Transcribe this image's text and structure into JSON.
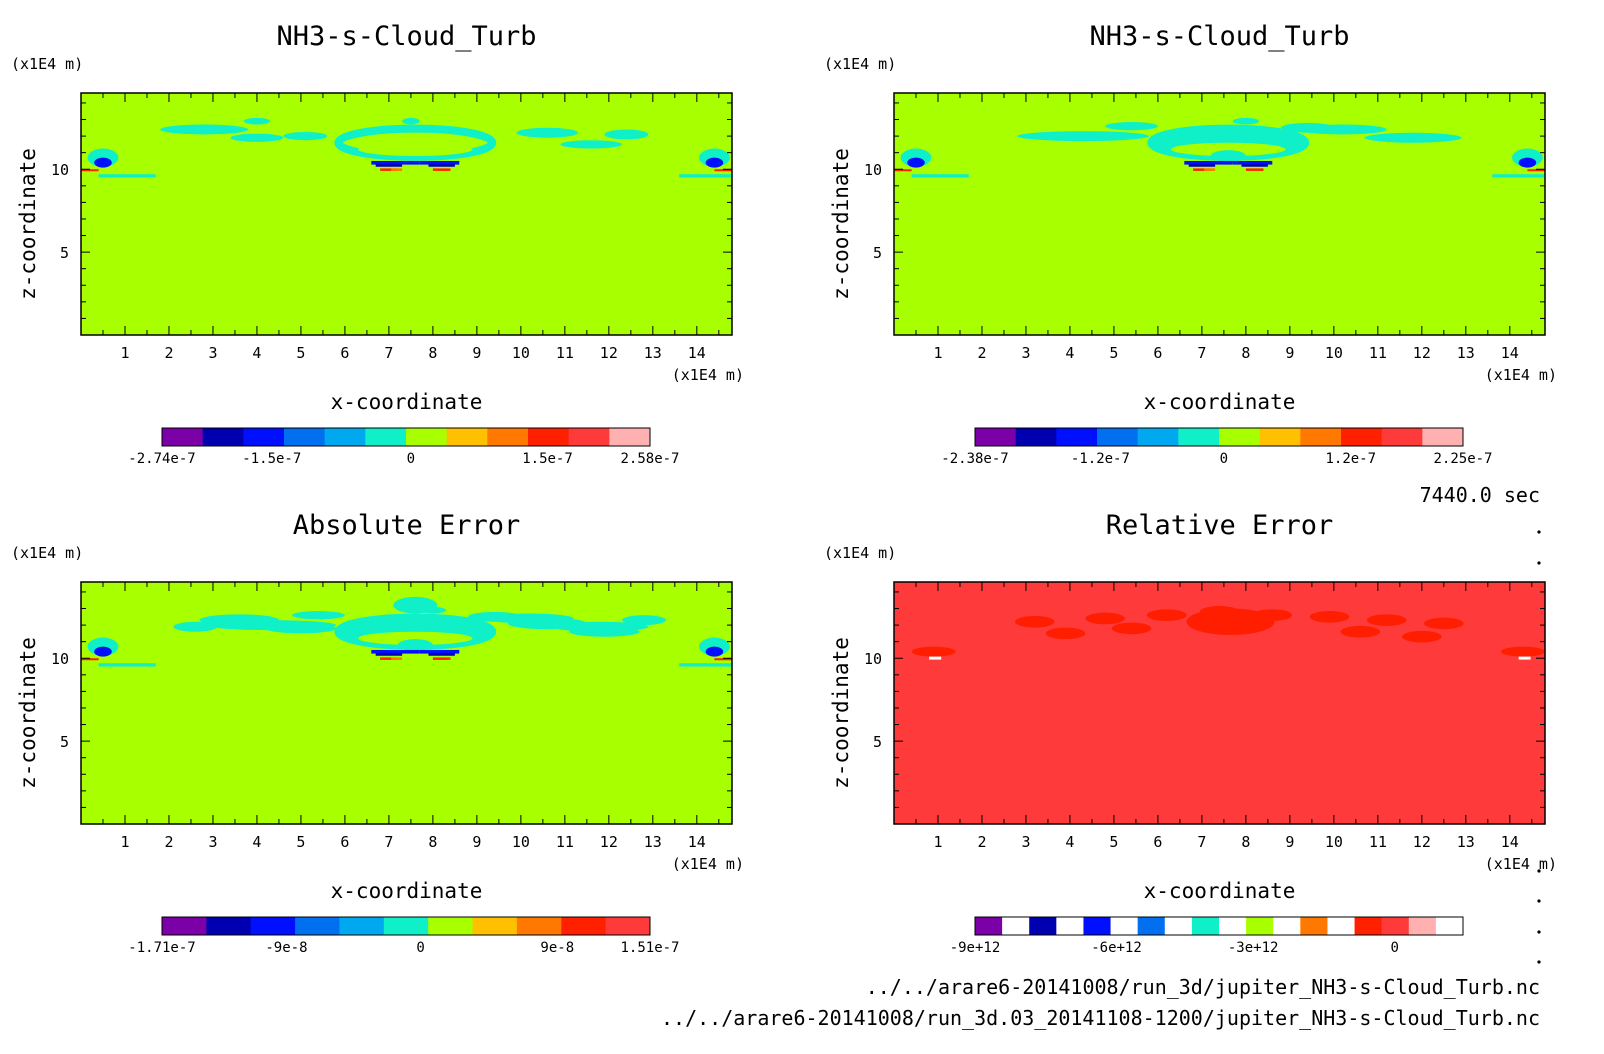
{
  "time_label": "7440.0 sec",
  "footer": {
    "file1": "../../arare6-20141008/run_3d/jupiter_NH3-s-Cloud_Turb.nc",
    "file2": "../../arare6-20141008/run_3d.03_20141108-1200/jupiter_NH3-s-Cloud_Turb.nc"
  },
  "palette": {
    "purple": "#7b00a8",
    "darkblue": "#0000b0",
    "blue": "#0010ff",
    "midblue": "#0070f0",
    "skyblue": "#00a8f0",
    "cyan": "#10f0c8",
    "green": "#a8ff00",
    "yellow": "#ffc000",
    "orange": "#ff7800",
    "red": "#ff2000",
    "redpink": "#ff3a3a",
    "pink": "#ffb0b0"
  },
  "chart_data": [
    {
      "id": "p1",
      "type": "heatmap",
      "title": "NH3-s-Cloud_Turb",
      "xlabel": "x-coordinate",
      "ylabel": "z-coordinate",
      "xunit": "(x1E4 m)",
      "yunit": "(x1E4 m)",
      "xticks": [
        "1",
        "2",
        "3",
        "4",
        "5",
        "6",
        "7",
        "8",
        "9",
        "10",
        "11",
        "12",
        "13",
        "14"
      ],
      "yticks": [
        "5",
        "10"
      ],
      "xlim": [
        0,
        14.8
      ],
      "ylim": [
        0,
        14.6
      ],
      "background": "#a8ff00",
      "colorbar": {
        "colors": [
          "#7b00a8",
          "#0000b0",
          "#0010ff",
          "#0070f0",
          "#00a8f0",
          "#10f0c8",
          "#a8ff00",
          "#ffc000",
          "#ff7800",
          "#ff2000",
          "#ff3a3a",
          "#ffb0b0"
        ],
        "labels": [
          "-2.74e-7",
          "-1.5e-7",
          "0",
          "1.5e-7",
          "2.58e-7"
        ]
      }
    },
    {
      "id": "p2",
      "type": "heatmap",
      "title": "NH3-s-Cloud_Turb",
      "xlabel": "x-coordinate",
      "ylabel": "z-coordinate",
      "xunit": "(x1E4 m)",
      "yunit": "(x1E4 m)",
      "xticks": [
        "1",
        "2",
        "3",
        "4",
        "5",
        "6",
        "7",
        "8",
        "9",
        "10",
        "11",
        "12",
        "13",
        "14"
      ],
      "yticks": [
        "5",
        "10"
      ],
      "xlim": [
        0,
        14.8
      ],
      "ylim": [
        0,
        14.6
      ],
      "background": "#a8ff00",
      "colorbar": {
        "colors": [
          "#7b00a8",
          "#0000b0",
          "#0010ff",
          "#0070f0",
          "#00a8f0",
          "#10f0c8",
          "#a8ff00",
          "#ffc000",
          "#ff7800",
          "#ff2000",
          "#ff3a3a",
          "#ffb0b0"
        ],
        "labels": [
          "-2.38e-7",
          "-1.2e-7",
          "0",
          "1.2e-7",
          "2.25e-7"
        ]
      }
    },
    {
      "id": "p3",
      "type": "heatmap",
      "title": "Absolute Error",
      "xlabel": "x-coordinate",
      "ylabel": "z-coordinate",
      "xunit": "(x1E4 m)",
      "yunit": "(x1E4 m)",
      "xticks": [
        "1",
        "2",
        "3",
        "4",
        "5",
        "6",
        "7",
        "8",
        "9",
        "10",
        "11",
        "12",
        "13",
        "14"
      ],
      "yticks": [
        "5",
        "10"
      ],
      "xlim": [
        0,
        14.8
      ],
      "ylim": [
        0,
        14.6
      ],
      "background": "#a8ff00",
      "colorbar": {
        "colors": [
          "#7b00a8",
          "#0000b0",
          "#0010ff",
          "#0070f0",
          "#00a8f0",
          "#10f0c8",
          "#a8ff00",
          "#ffc000",
          "#ff7800",
          "#ff2000",
          "#ff3a3a"
        ],
        "labels": [
          "-1.71e-7",
          "-9e-8",
          "0",
          "9e-8",
          "1.51e-7"
        ]
      }
    },
    {
      "id": "p4",
      "type": "heatmap",
      "title": "Relative Error",
      "xlabel": "x-coordinate",
      "ylabel": "z-coordinate",
      "xunit": "(x1E4 m)",
      "yunit": "(x1E4 m)",
      "xticks": [
        "1",
        "2",
        "3",
        "4",
        "5",
        "6",
        "7",
        "8",
        "9",
        "10",
        "11",
        "12",
        "13",
        "14"
      ],
      "yticks": [
        "5",
        "10"
      ],
      "xlim": [
        0,
        14.8
      ],
      "ylim": [
        0,
        14.6
      ],
      "background": "#ff3a3a",
      "colorbar": {
        "colors": [
          "#7b00a8",
          "#ffffff",
          "#0000b0",
          "#ffffff",
          "#0010ff",
          "#ffffff",
          "#0070f0",
          "#ffffff",
          "#10f0c8",
          "#ffffff",
          "#a8ff00",
          "#ffffff",
          "#ff7800",
          "#ffffff",
          "#ff2000",
          "#ff3a3a",
          "#ffb0b0",
          "#ffffff"
        ],
        "labels": [
          "-9e+12",
          "-6e+12",
          "-3e+12",
          "0"
        ]
      }
    }
  ]
}
